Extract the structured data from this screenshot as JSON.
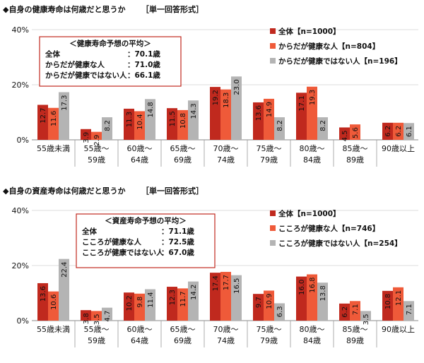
{
  "chart_data": [
    {
      "type": "bar",
      "title": "◆自身の健康寿命は何歳だと思うか",
      "question_type": "［単一回答形式］",
      "ylim": [
        0,
        40
      ],
      "yticks": [
        "0%",
        "20%",
        "40%"
      ],
      "categories": [
        [
          "55歳未満"
        ],
        [
          "55歳～",
          "59歳"
        ],
        [
          "60歳～",
          "64歳"
        ],
        [
          "65歳～",
          "69歳"
        ],
        [
          "70歳～",
          "74歳"
        ],
        [
          "75歳～",
          "79歳"
        ],
        [
          "80歳～",
          "84歳"
        ],
        [
          "85歳～",
          "89歳"
        ],
        [
          "90歳以上"
        ]
      ],
      "series": [
        {
          "name": "全体【n=1000】",
          "color": "#c0291e",
          "values": [
            12.7,
            3.9,
            11.3,
            11.5,
            19.2,
            13.6,
            17.1,
            4.5,
            6.2
          ]
        },
        {
          "name": "からだが健康な人【n=804】",
          "color": "#ef5a39",
          "values": [
            11.6,
            2.9,
            10.4,
            10.8,
            18.3,
            14.9,
            19.3,
            5.6,
            6.2
          ]
        },
        {
          "name": "からだが健康ではない人【n=196】",
          "color": "#b4b4b4",
          "values": [
            17.3,
            8.2,
            14.8,
            14.3,
            23.0,
            8.2,
            8.2,
            0,
            6.1
          ]
        }
      ],
      "value_labels": [
        [
          "12.7",
          "3.9",
          "11.3",
          "11.5",
          "19.2",
          "13.6",
          "17.1",
          "4.5",
          "6.2"
        ],
        [
          "11.6",
          "2.9",
          "10.4",
          "10.8",
          "18.3",
          "14.9",
          "19.3",
          "5.6",
          "6.2"
        ],
        [
          "17.3",
          "8.2",
          "14.8",
          "14.3",
          "23.0",
          "8.2",
          "8.2",
          "",
          "6.1"
        ]
      ],
      "legend_position": "top-right",
      "average_box": {
        "title": "＜健康寿命予想の平均＞",
        "rows": [
          {
            "label": "全体",
            "value": "：70.1歳"
          },
          {
            "label": "からだが健康な人",
            "value": "：71.0歳"
          },
          {
            "label": "からだが健康ではない人",
            "value": "：66.1歳"
          }
        ]
      }
    },
    {
      "type": "bar",
      "title": "◆自身の資産寿命は何歳だと思うか",
      "question_type": "［単一回答形式］",
      "ylim": [
        0,
        40
      ],
      "yticks": [
        "0%",
        "20%",
        "40%"
      ],
      "categories": [
        [
          "55歳未満"
        ],
        [
          "55歳～",
          "59歳"
        ],
        [
          "60歳～",
          "64歳"
        ],
        [
          "65歳～",
          "69歳"
        ],
        [
          "70歳～",
          "74歳"
        ],
        [
          "75歳～",
          "79歳"
        ],
        [
          "80歳～",
          "84歳"
        ],
        [
          "85歳～",
          "89歳"
        ],
        [
          "90歳以上"
        ]
      ],
      "series": [
        {
          "name": "全体【n=1000】",
          "color": "#c0291e",
          "values": [
            13.6,
            3.8,
            10.2,
            12.3,
            17.4,
            9.7,
            16.0,
            6.2,
            10.8
          ]
        },
        {
          "name": "こころが健康な人【n=746】",
          "color": "#ef5a39",
          "values": [
            10.6,
            3.5,
            9.8,
            11.7,
            17.7,
            10.9,
            16.8,
            7.1,
            12.1
          ]
        },
        {
          "name": "こころが健康ではない人【n=254】",
          "color": "#b4b4b4",
          "values": [
            22.4,
            4.7,
            11.4,
            14.2,
            16.5,
            6.3,
            13.8,
            3.5,
            7.1
          ]
        }
      ],
      "value_labels": [
        [
          "13.6",
          "3.8",
          "10.2",
          "12.3",
          "17.4",
          "9.7",
          "16.0",
          "6.2",
          "10.8"
        ],
        [
          "10.6",
          "3.5",
          "9.8",
          "11.7",
          "17.7",
          "10.9",
          "16.8",
          "7.1",
          "12.1"
        ],
        [
          "22.4",
          "4.7",
          "11.4",
          "14.2",
          "16.5",
          "6.3",
          "13.8",
          "3.5",
          "7.1"
        ]
      ],
      "legend_position": "top-right",
      "average_box": {
        "title": "＜資産寿命予想の平均＞",
        "rows": [
          {
            "label": "全体",
            "value": "：71.1歳"
          },
          {
            "label": "こころが健康な人",
            "value": "：72.5歳"
          },
          {
            "label": "こころが健康ではない人",
            "value": "：67.0歳"
          }
        ]
      }
    }
  ]
}
